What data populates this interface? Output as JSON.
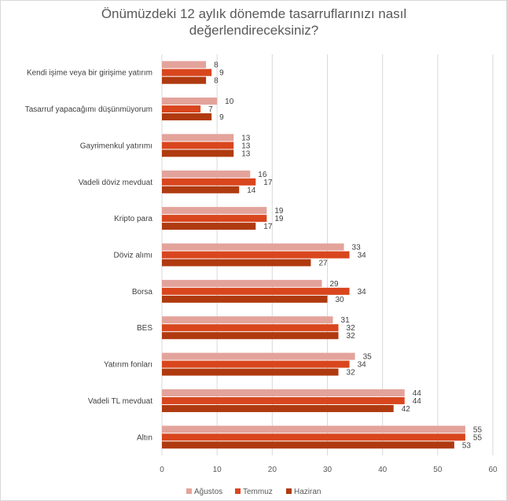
{
  "chart_data": {
    "type": "bar",
    "orientation": "horizontal",
    "title": "Önümüzdeki 12 aylık dönemde tasarruflarınızı nasıl değerlendireceksiniz?",
    "title_lines": [
      "Önümüzdeki 12 aylık dönemde tasarruflarınızı nasıl",
      "değerlendireceksiniz?"
    ],
    "categories": [
      "Kendi işime veya bir girişime yatırım",
      "Tasarruf yapacağımı düşünmüyorum",
      "Gayrimenkul yatırımı",
      "Vadeli döviz mevduat",
      "Kripto para",
      "Döviz alımı",
      "Borsa",
      "BES",
      "Yatırım fonları",
      "Vadeli TL mevduat",
      "Altın"
    ],
    "series": [
      {
        "name": "Ağustos",
        "color": "#e3a39b",
        "values": [
          8,
          10,
          13,
          16,
          19,
          33,
          29,
          31,
          35,
          44,
          55
        ]
      },
      {
        "name": "Temmuz",
        "color": "#d9461e",
        "values": [
          9,
          7,
          13,
          17,
          19,
          34,
          34,
          32,
          34,
          44,
          55
        ]
      },
      {
        "name": "Haziran",
        "color": "#b03a10",
        "values": [
          8,
          9,
          13,
          14,
          17,
          27,
          30,
          32,
          32,
          42,
          53
        ]
      }
    ],
    "xlim": [
      0,
      60
    ],
    "xticks": [
      0,
      10,
      20,
      30,
      40,
      50,
      60
    ],
    "xlabel": "",
    "ylabel": "",
    "grid": "vertical",
    "legend_position": "bottom",
    "gridline_color": "#d9d9d9"
  }
}
